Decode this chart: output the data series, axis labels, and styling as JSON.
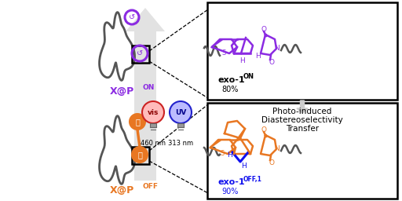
{
  "bg_color": "#ffffff",
  "purple": "#8B2BE2",
  "orange": "#E87722",
  "blue": "#1010EE",
  "gray": "#888888",
  "dark_gray": "#555555",
  "light_gray": "#CCCCCC",
  "photo_induced_text_line1": "Photo-induced",
  "photo_induced_text_line2": "Diastereoselectivity",
  "photo_induced_text_line3": "Transfer",
  "xpon_label": "X@P",
  "xpon_sub": "ON",
  "xpoff_label": "X@P",
  "xpoff_sub": "OFF",
  "exo1on_label": "exo-1",
  "exo1on_sub": "ON",
  "exo1on_pct": "80%",
  "exo1off_label": "exo-1",
  "exo1off_sub": "OFF,1",
  "exo1off_pct": "90%",
  "vis_label": "vis",
  "uv_label": "UV",
  "nm460": "460 nm",
  "nm313": "313 nm"
}
